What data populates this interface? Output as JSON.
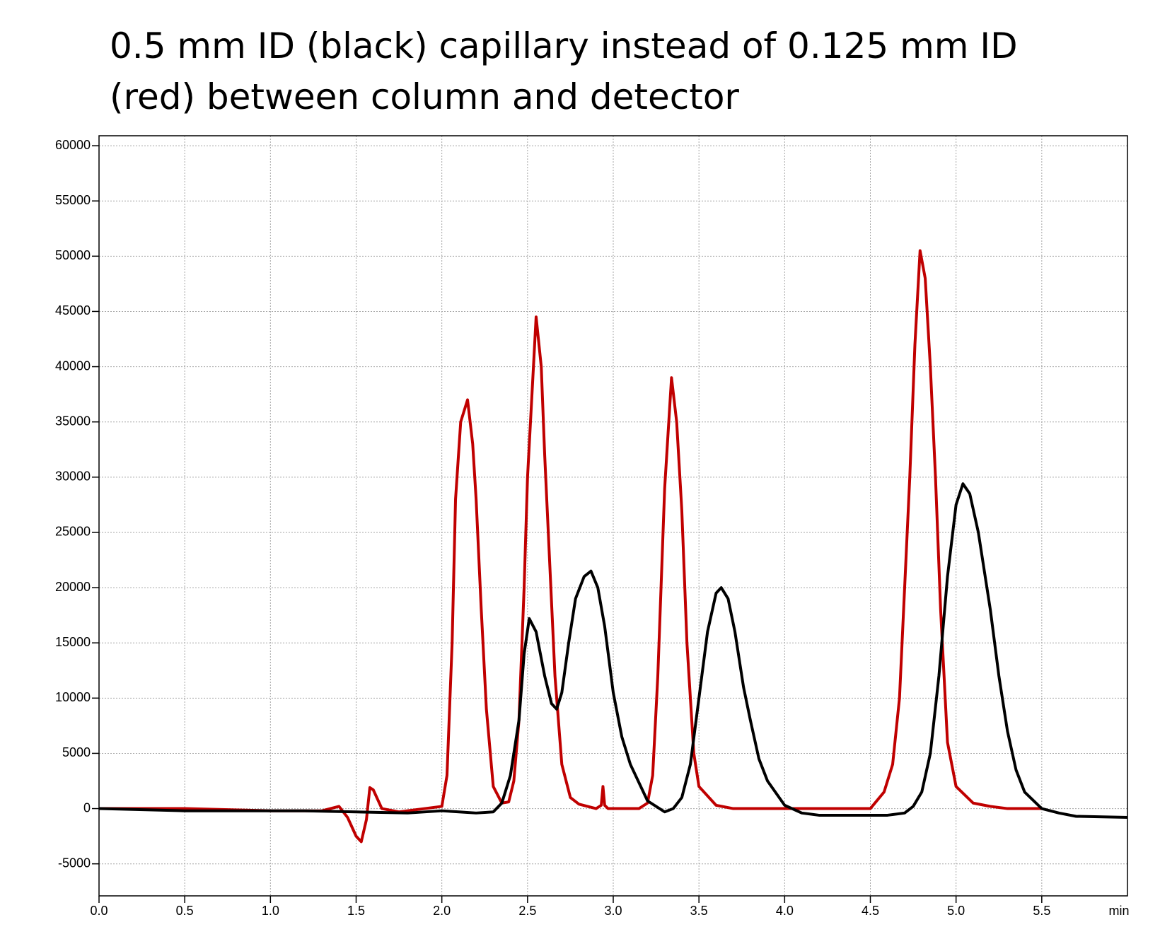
{
  "chart_data": {
    "type": "line",
    "title": [
      "0.5 mm ID (black) capillary instead of 0.125 mm ID",
      "(red) between column and detector"
    ],
    "x_label": "min",
    "xlim": [
      0,
      6.0
    ],
    "ylim": [
      -7900,
      60900
    ],
    "xticks": [
      {
        "value": 0,
        "label": "0.0"
      },
      0.5,
      {
        "value": 1,
        "label": "1.0"
      },
      1.5,
      {
        "value": 2,
        "label": "2.0"
      },
      2.5,
      {
        "value": 3,
        "label": "3.0"
      },
      3.5,
      {
        "value": 4,
        "label": "4.0"
      },
      4.5,
      {
        "value": 5,
        "label": "5.0"
      },
      5.5
    ],
    "yticks": [
      -5000,
      0,
      5000,
      10000,
      15000,
      20000,
      25000,
      30000,
      35000,
      40000,
      45000,
      50000,
      55000,
      60000
    ],
    "grid": true,
    "series": [
      {
        "name": "0.125 mm ID (red)",
        "color": "#c00000",
        "x": [
          0,
          0.5,
          1.0,
          1.3,
          1.4,
          1.45,
          1.5,
          1.53,
          1.56,
          1.58,
          1.6,
          1.65,
          1.75,
          1.9,
          2.0,
          2.03,
          2.06,
          2.08,
          2.11,
          2.15,
          2.18,
          2.2,
          2.23,
          2.26,
          2.3,
          2.35,
          2.39,
          2.42,
          2.45,
          2.48,
          2.5,
          2.55,
          2.58,
          2.6,
          2.63,
          2.66,
          2.7,
          2.75,
          2.8,
          2.9,
          2.93,
          2.94,
          2.95,
          2.97,
          3.0,
          3.15,
          3.2,
          3.23,
          3.26,
          3.3,
          3.34,
          3.37,
          3.4,
          3.43,
          3.47,
          3.5,
          3.6,
          3.7,
          4.0,
          4.5,
          4.58,
          4.63,
          4.67,
          4.7,
          4.73,
          4.76,
          4.79,
          4.82,
          4.85,
          4.88,
          4.91,
          4.95,
          5.0,
          5.1,
          5.2,
          5.3,
          5.5
        ],
        "values": [
          0,
          0,
          -200,
          -200,
          200,
          -800,
          -2500,
          -3000,
          -1000,
          1900,
          1700,
          0,
          -300,
          0,
          200,
          3000,
          15000,
          28000,
          35000,
          37000,
          33000,
          28000,
          18000,
          9000,
          2000,
          500,
          600,
          2500,
          8000,
          20000,
          30000,
          44500,
          40000,
          32000,
          22000,
          12000,
          4000,
          1000,
          400,
          0,
          300,
          2000,
          300,
          0,
          0,
          0,
          500,
          3000,
          12000,
          29000,
          39000,
          35000,
          27000,
          15000,
          5000,
          2000,
          300,
          0,
          0,
          0,
          1500,
          4000,
          10000,
          20000,
          30000,
          42000,
          50500,
          48000,
          40000,
          30000,
          18000,
          6000,
          2000,
          500,
          200,
          0,
          0
        ]
      },
      {
        "name": "0.5 mm ID (black)",
        "color": "#000000",
        "x": [
          0,
          0.5,
          1.0,
          1.2,
          1.5,
          1.8,
          2.0,
          2.1,
          2.2,
          2.3,
          2.35,
          2.4,
          2.45,
          2.48,
          2.51,
          2.55,
          2.6,
          2.64,
          2.67,
          2.7,
          2.74,
          2.78,
          2.83,
          2.87,
          2.91,
          2.95,
          3.0,
          3.05,
          3.1,
          3.2,
          3.3,
          3.35,
          3.4,
          3.45,
          3.5,
          3.55,
          3.6,
          3.63,
          3.67,
          3.71,
          3.76,
          3.8,
          3.85,
          3.9,
          4.0,
          4.1,
          4.2,
          4.6,
          4.7,
          4.75,
          4.8,
          4.85,
          4.9,
          4.95,
          5.0,
          5.04,
          5.08,
          5.13,
          5.2,
          5.25,
          5.3,
          5.35,
          5.4,
          5.5,
          5.6,
          5.7,
          6.0
        ],
        "values": [
          0,
          -200,
          -200,
          -200,
          -300,
          -400,
          -200,
          -300,
          -400,
          -300,
          500,
          3000,
          8000,
          14000,
          17200,
          16000,
          12000,
          9500,
          9000,
          10500,
          15000,
          19000,
          21000,
          21500,
          20000,
          16500,
          10500,
          6500,
          4000,
          700,
          -300,
          0,
          1000,
          4000,
          10000,
          16000,
          19500,
          20000,
          19000,
          16000,
          11000,
          8000,
          4500,
          2500,
          300,
          -400,
          -600,
          -600,
          -400,
          200,
          1500,
          5000,
          12000,
          21000,
          27500,
          29400,
          28500,
          25000,
          18000,
          12000,
          7000,
          3500,
          1500,
          0,
          -400,
          -700,
          -800
        ]
      }
    ]
  }
}
